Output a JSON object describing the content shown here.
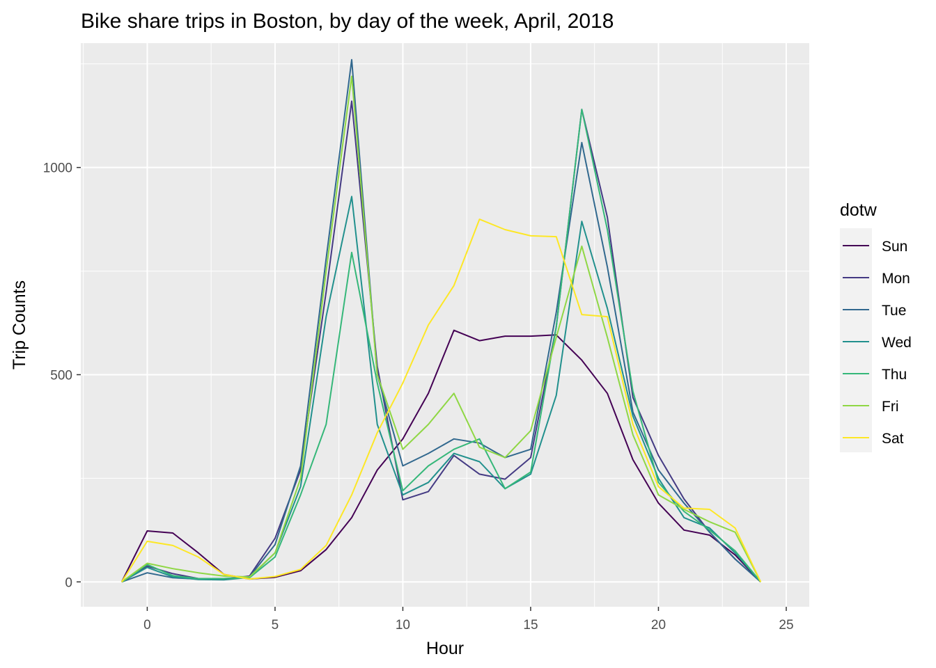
{
  "chart_data": {
    "type": "line",
    "title": "Bike share trips in Boston, by day of the week, April, 2018",
    "xlabel": "Hour",
    "ylabel": "Trip Counts",
    "xlim": [
      -2.6,
      25.9
    ],
    "ylim": [
      -60,
      1300
    ],
    "x_ticks": [
      0,
      5,
      10,
      15,
      20,
      25
    ],
    "x_tick_labels": [
      "0",
      "5",
      "10",
      "15",
      "20",
      "25"
    ],
    "y_ticks": [
      0,
      500,
      1000
    ],
    "y_tick_labels": [
      "0",
      "500",
      "1000"
    ],
    "grid": true,
    "legend": {
      "title": "dotw",
      "placement": "right"
    },
    "x": [
      -1,
      0,
      1,
      2,
      3,
      4,
      5,
      6,
      7,
      8,
      9,
      10,
      11,
      12,
      13,
      14,
      15,
      16,
      17,
      18,
      19,
      20,
      21,
      22,
      23,
      24
    ],
    "series": [
      {
        "name": "Sun",
        "color": "#440154",
        "values": [
          0,
          123,
          118,
          70,
          18,
          7,
          11,
          27,
          78,
          155,
          270,
          345,
          455,
          607,
          582,
          593,
          593,
          596,
          535,
          455,
          295,
          190,
          125,
          113,
          65,
          0
        ]
      },
      {
        "name": "Mon",
        "color": "#443A83",
        "values": [
          0,
          38,
          20,
          8,
          7,
          14,
          105,
          270,
          700,
          1160,
          520,
          198,
          218,
          305,
          260,
          248,
          300,
          615,
          1140,
          880,
          445,
          305,
          200,
          120,
          55,
          0
        ]
      },
      {
        "name": "Tue",
        "color": "#31688E",
        "values": [
          0,
          22,
          10,
          7,
          8,
          12,
          90,
          280,
          780,
          1260,
          500,
          280,
          310,
          345,
          335,
          300,
          320,
          650,
          1060,
          760,
          410,
          270,
          190,
          120,
          55,
          0
        ]
      },
      {
        "name": "Wed",
        "color": "#21908D",
        "values": [
          0,
          35,
          12,
          6,
          5,
          11,
          70,
          230,
          640,
          930,
          380,
          210,
          240,
          310,
          290,
          225,
          260,
          450,
          870,
          660,
          400,
          250,
          155,
          130,
          70,
          0
        ]
      },
      {
        "name": "Thu",
        "color": "#35B779",
        "values": [
          0,
          42,
          15,
          8,
          8,
          10,
          60,
          210,
          380,
          795,
          480,
          220,
          280,
          320,
          345,
          225,
          265,
          615,
          1140,
          850,
          460,
          240,
          170,
          125,
          75,
          0
        ]
      },
      {
        "name": "Fri",
        "color": "#8FD744",
        "values": [
          0,
          45,
          32,
          22,
          14,
          12,
          70,
          250,
          750,
          1220,
          500,
          320,
          380,
          455,
          325,
          300,
          365,
          590,
          810,
          590,
          355,
          210,
          175,
          145,
          120,
          0
        ]
      },
      {
        "name": "Sat",
        "color": "#FDE725",
        "values": [
          0,
          98,
          88,
          60,
          18,
          7,
          13,
          30,
          88,
          210,
          360,
          480,
          620,
          715,
          875,
          850,
          835,
          833,
          645,
          640,
          380,
          230,
          178,
          175,
          130,
          0
        ]
      }
    ]
  }
}
